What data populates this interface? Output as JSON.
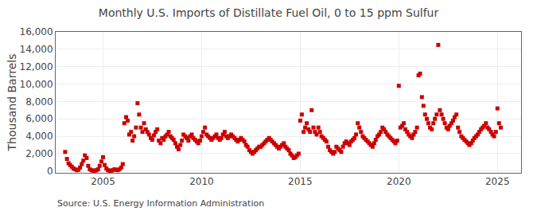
{
  "chart_data": {
    "type": "scatter",
    "title": "Monthly U.S. Imports of Distillate Fuel Oil, 0 to 15 ppm Sulfur",
    "ylabel": "Thousand Barrels",
    "annotations": [
      "Source: U.S. Energy Information Administration"
    ],
    "color": "#cc0000",
    "marker": "square",
    "grid": true,
    "xlim": [
      2002.6,
      2026.2
    ],
    "ylim": [
      -200,
      16000
    ],
    "xticks": [
      2005,
      2010,
      2015,
      2020,
      2025
    ],
    "yticks": [
      0,
      {
        "value": 2000,
        "label": "2,000"
      },
      {
        "value": 4000,
        "label": "4,000"
      },
      {
        "value": 6000,
        "label": "6,000"
      },
      {
        "value": 8000,
        "label": "8,000"
      },
      {
        "value": 10000,
        "label": "10,000"
      },
      {
        "value": 12000,
        "label": "12,000"
      },
      {
        "value": 14000,
        "label": "14,000"
      },
      {
        "value": 16000,
        "label": "16,000"
      }
    ],
    "x": [
      2003.08,
      2003.17,
      2003.25,
      2003.33,
      2003.42,
      2003.5,
      2003.58,
      2003.67,
      2003.75,
      2003.83,
      2003.92,
      2004.0,
      2004.08,
      2004.17,
      2004.25,
      2004.33,
      2004.42,
      2004.5,
      2004.58,
      2004.67,
      2004.75,
      2004.83,
      2004.92,
      2005.0,
      2005.08,
      2005.17,
      2005.25,
      2005.33,
      2005.42,
      2005.5,
      2005.58,
      2005.67,
      2005.75,
      2005.83,
      2005.92,
      2006.0,
      2006.08,
      2006.17,
      2006.25,
      2006.33,
      2006.42,
      2006.5,
      2006.58,
      2006.67,
      2006.75,
      2006.83,
      2006.92,
      2007.0,
      2007.08,
      2007.17,
      2007.25,
      2007.33,
      2007.42,
      2007.5,
      2007.58,
      2007.67,
      2007.75,
      2007.83,
      2007.92,
      2008.0,
      2008.08,
      2008.17,
      2008.25,
      2008.33,
      2008.42,
      2008.5,
      2008.58,
      2008.67,
      2008.75,
      2008.83,
      2008.92,
      2009.0,
      2009.08,
      2009.17,
      2009.25,
      2009.33,
      2009.42,
      2009.5,
      2009.58,
      2009.67,
      2009.75,
      2009.83,
      2009.92,
      2010.0,
      2010.08,
      2010.17,
      2010.25,
      2010.33,
      2010.42,
      2010.5,
      2010.58,
      2010.67,
      2010.75,
      2010.83,
      2010.92,
      2011.0,
      2011.08,
      2011.17,
      2011.25,
      2011.33,
      2011.42,
      2011.5,
      2011.58,
      2011.67,
      2011.75,
      2011.83,
      2011.92,
      2012.0,
      2012.08,
      2012.17,
      2012.25,
      2012.33,
      2012.42,
      2012.5,
      2012.58,
      2012.67,
      2012.75,
      2012.83,
      2012.92,
      2013.0,
      2013.08,
      2013.17,
      2013.25,
      2013.33,
      2013.42,
      2013.5,
      2013.58,
      2013.67,
      2013.75,
      2013.83,
      2013.92,
      2014.0,
      2014.08,
      2014.17,
      2014.25,
      2014.33,
      2014.42,
      2014.5,
      2014.58,
      2014.67,
      2014.75,
      2014.83,
      2014.92,
      2015.0,
      2015.08,
      2015.17,
      2015.25,
      2015.33,
      2015.42,
      2015.5,
      2015.58,
      2015.67,
      2015.75,
      2015.83,
      2015.92,
      2016.0,
      2016.08,
      2016.17,
      2016.25,
      2016.33,
      2016.42,
      2016.5,
      2016.58,
      2016.67,
      2016.75,
      2016.83,
      2016.92,
      2017.0,
      2017.08,
      2017.17,
      2017.25,
      2017.33,
      2017.42,
      2017.5,
      2017.58,
      2017.67,
      2017.75,
      2017.83,
      2017.92,
      2018.0,
      2018.08,
      2018.17,
      2018.25,
      2018.33,
      2018.42,
      2018.5,
      2018.58,
      2018.67,
      2018.75,
      2018.83,
      2018.92,
      2019.0,
      2019.08,
      2019.17,
      2019.25,
      2019.33,
      2019.42,
      2019.5,
      2019.58,
      2019.67,
      2019.75,
      2019.83,
      2019.92,
      2020.0,
      2020.08,
      2020.17,
      2020.25,
      2020.33,
      2020.42,
      2020.5,
      2020.58,
      2020.67,
      2020.75,
      2020.83,
      2020.92,
      2021.0,
      2021.08,
      2021.17,
      2021.25,
      2021.33,
      2021.42,
      2021.5,
      2021.58,
      2021.67,
      2021.75,
      2021.83,
      2021.92,
      2022.0,
      2022.08,
      2022.17,
      2022.25,
      2022.33,
      2022.42,
      2022.5,
      2022.58,
      2022.67,
      2022.75,
      2022.83,
      2022.92,
      2023.0,
      2023.08,
      2023.17,
      2023.25,
      2023.33,
      2023.42,
      2023.5,
      2023.58,
      2023.67,
      2023.75,
      2023.83,
      2023.92,
      2024.0,
      2024.08,
      2024.17,
      2024.25,
      2024.33,
      2024.42,
      2024.5,
      2024.58,
      2024.67,
      2024.75,
      2024.83,
      2024.92,
      2025.0,
      2025.08,
      2025.17
    ],
    "values": [
      2200,
      1400,
      900,
      700,
      500,
      300,
      200,
      100,
      150,
      400,
      800,
      1200,
      1800,
      1500,
      600,
      200,
      100,
      50,
      50,
      100,
      200,
      600,
      1100,
      1600,
      700,
      300,
      100,
      50,
      50,
      100,
      200,
      150,
      100,
      200,
      400,
      800,
      5500,
      6200,
      5800,
      4200,
      4500,
      3500,
      4000,
      5000,
      7800,
      6500,
      5000,
      4500,
      5500,
      4800,
      4500,
      4200,
      3800,
      3600,
      4100,
      4500,
      4800,
      3500,
      3200,
      3800,
      3600,
      4000,
      4200,
      4500,
      4000,
      3800,
      3600,
      3200,
      2800,
      2500,
      3000,
      3500,
      4200,
      4000,
      3800,
      3500,
      4000,
      4200,
      3800,
      3600,
      3400,
      3200,
      3500,
      4000,
      4500,
      5000,
      4200,
      4000,
      3800,
      3600,
      3800,
      4000,
      4200,
      3800,
      3600,
      3800,
      4200,
      4500,
      4000,
      3800,
      4000,
      4200,
      4000,
      3800,
      3600,
      3400,
      3600,
      3800,
      3600,
      3400,
      3000,
      2800,
      2400,
      2200,
      2000,
      2200,
      2400,
      2600,
      2800,
      2800,
      3000,
      3200,
      3400,
      3600,
      3800,
      3600,
      3400,
      3200,
      3000,
      2800,
      2600,
      2800,
      3000,
      3200,
      2800,
      2600,
      2400,
      2000,
      1800,
      1500,
      1600,
      1800,
      2000,
      5800,
      6500,
      4500,
      5000,
      5500,
      4800,
      4500,
      7000,
      5000,
      4500,
      4200,
      5000,
      4500,
      4000,
      3800,
      3600,
      3400,
      2800,
      2400,
      2200,
      2000,
      2200,
      2800,
      2600,
      2400,
      2200,
      2800,
      3200,
      3400,
      3200,
      3000,
      3400,
      3600,
      3800,
      4200,
      5500,
      5000,
      4500,
      4000,
      3800,
      3600,
      3400,
      3200,
      3000,
      2800,
      3200,
      3600,
      4000,
      4200,
      4500,
      5000,
      4800,
      4500,
      4200,
      4000,
      3800,
      3600,
      3400,
      3200,
      3500,
      9800,
      5000,
      5200,
      5500,
      4800,
      4500,
      4200,
      4000,
      3800,
      4200,
      4500,
      5000,
      11000,
      11200,
      8500,
      7500,
      6500,
      6000,
      5500,
      5000,
      4800,
      5500,
      6000,
      6500,
      14500,
      7000,
      6500,
      6000,
      5500,
      5000,
      4800,
      5200,
      5500,
      5800,
      6200,
      6500,
      5000,
      4500,
      4000,
      3800,
      3600,
      3400,
      3200,
      3000,
      3200,
      3500,
      3800,
      4000,
      4200,
      4500,
      4800,
      5000,
      5200,
      5500,
      5000,
      4800,
      4500,
      4200,
      4000,
      4500,
      7200,
      5500,
      5000
    ]
  }
}
